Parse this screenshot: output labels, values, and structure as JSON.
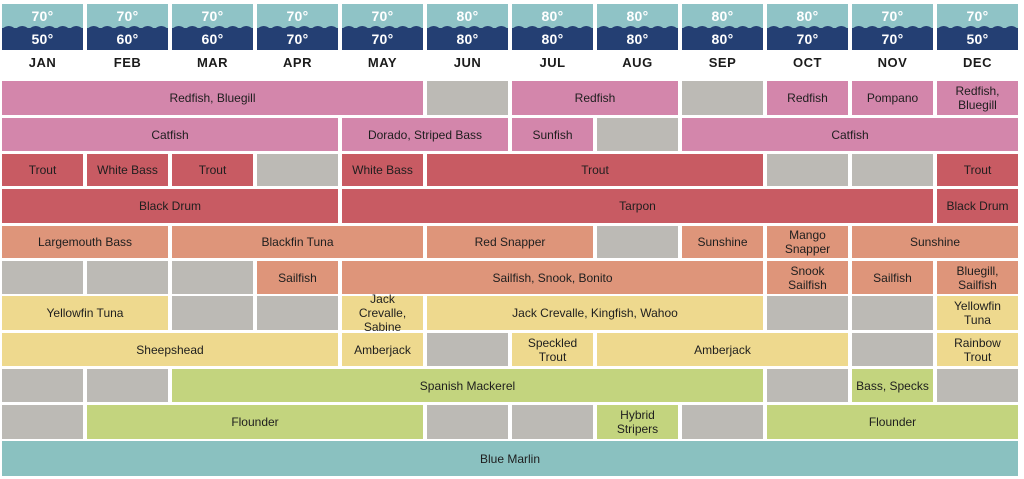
{
  "colors": {
    "air_band": "#8fc3c6",
    "water_band": "#243f73",
    "empty": "#bcbab5",
    "row_colors": [
      "#d386ab",
      "#d386ab",
      "#c85b63",
      "#c85b63",
      "#de957a",
      "#de957a",
      "#eed98e",
      "#eed98e",
      "#c3d47e",
      "#c3d47e",
      "#8ac1c0"
    ]
  },
  "months": [
    {
      "name": "JAN",
      "air": "70°",
      "water": "50°"
    },
    {
      "name": "FEB",
      "air": "70°",
      "water": "60°"
    },
    {
      "name": "MAR",
      "air": "70°",
      "water": "60°"
    },
    {
      "name": "APR",
      "air": "70°",
      "water": "70°"
    },
    {
      "name": "MAY",
      "air": "70°",
      "water": "70°"
    },
    {
      "name": "JUN",
      "air": "80°",
      "water": "80°"
    },
    {
      "name": "JUL",
      "air": "80°",
      "water": "80°"
    },
    {
      "name": "AUG",
      "air": "80°",
      "water": "80°"
    },
    {
      "name": "SEP",
      "air": "80°",
      "water": "80°"
    },
    {
      "name": "OCT",
      "air": "80°",
      "water": "70°"
    },
    {
      "name": "NOV",
      "air": "70°",
      "water": "70°"
    },
    {
      "name": "DEC",
      "air": "70°",
      "water": "50°"
    }
  ],
  "rows": [
    [
      {
        "label": "Redfish, Bluegill",
        "months": 5
      },
      {
        "label": "",
        "months": 1
      },
      {
        "label": "Redfish",
        "months": 2
      },
      {
        "label": "",
        "months": 1
      },
      {
        "label": "Redfish",
        "months": 1
      },
      {
        "label": "Pompano",
        "months": 1
      },
      {
        "label": "Redfish, Bluegill",
        "months": 1
      }
    ],
    [
      {
        "label": "Catfish",
        "months": 4
      },
      {
        "label": "Dorado, Striped Bass",
        "months": 2
      },
      {
        "label": "Sunfish",
        "months": 1
      },
      {
        "label": "",
        "months": 1
      },
      {
        "label": "Catfish",
        "months": 4
      }
    ],
    [
      {
        "label": "Trout",
        "months": 1
      },
      {
        "label": "White Bass",
        "months": 1
      },
      {
        "label": "Trout",
        "months": 1
      },
      {
        "label": "",
        "months": 1
      },
      {
        "label": "White Bass",
        "months": 1
      },
      {
        "label": "Trout",
        "months": 4
      },
      {
        "label": "",
        "months": 1
      },
      {
        "label": "",
        "months": 1
      },
      {
        "label": "Trout",
        "months": 1
      }
    ],
    [
      {
        "label": "Black Drum",
        "months": 4
      },
      {
        "label": "Tarpon",
        "months": 7
      },
      {
        "label": "Black Drum",
        "months": 1
      }
    ],
    [
      {
        "label": "Largemouth Bass",
        "months": 2
      },
      {
        "label": "Blackfin Tuna",
        "months": 3
      },
      {
        "label": "Red Snapper",
        "months": 2
      },
      {
        "label": "",
        "months": 1
      },
      {
        "label": "Sunshine",
        "months": 1
      },
      {
        "label": "Mango Snapper",
        "months": 1
      },
      {
        "label": "Sunshine",
        "months": 2
      }
    ],
    [
      {
        "label": "",
        "months": 1
      },
      {
        "label": "",
        "months": 1
      },
      {
        "label": "",
        "months": 1
      },
      {
        "label": "Sailfish",
        "months": 1
      },
      {
        "label": "Sailfish, Snook, Bonito",
        "months": 5
      },
      {
        "label": "Snook Sailfish",
        "months": 1
      },
      {
        "label": "Sailfish",
        "months": 1
      },
      {
        "label": "Bluegill, Sailfish",
        "months": 1
      }
    ],
    [
      {
        "label": "Yellowfin Tuna",
        "months": 2
      },
      {
        "label": "",
        "months": 1
      },
      {
        "label": "",
        "months": 1
      },
      {
        "label": "Jack Crevalle, Sabine",
        "months": 1
      },
      {
        "label": "Jack Crevalle, Kingfish, Wahoo",
        "months": 4
      },
      {
        "label": "",
        "months": 1
      },
      {
        "label": "",
        "months": 1
      },
      {
        "label": "Yellowfin Tuna",
        "months": 1
      }
    ],
    [
      {
        "label": "Sheepshead",
        "months": 4
      },
      {
        "label": "Amberjack",
        "months": 1
      },
      {
        "label": "",
        "months": 1
      },
      {
        "label": "Speckled Trout",
        "months": 1
      },
      {
        "label": "Amberjack",
        "months": 3
      },
      {
        "label": "",
        "months": 1
      },
      {
        "label": "Rainbow Trout",
        "months": 1
      }
    ],
    [
      {
        "label": "",
        "months": 1
      },
      {
        "label": "",
        "months": 1
      },
      {
        "label": "Spanish Mackerel",
        "months": 7
      },
      {
        "label": "",
        "months": 1
      },
      {
        "label": "Bass, Specks",
        "months": 1
      },
      {
        "label": "",
        "months": 1
      }
    ],
    [
      {
        "label": "",
        "months": 1
      },
      {
        "label": "Flounder",
        "months": 4
      },
      {
        "label": "",
        "months": 1
      },
      {
        "label": "",
        "months": 1
      },
      {
        "label": "Hybrid Stripers",
        "months": 1
      },
      {
        "label": "",
        "months": 1
      },
      {
        "label": "Flounder",
        "months": 3
      }
    ],
    [
      {
        "label": "Blue Marlin",
        "months": 12
      }
    ]
  ]
}
